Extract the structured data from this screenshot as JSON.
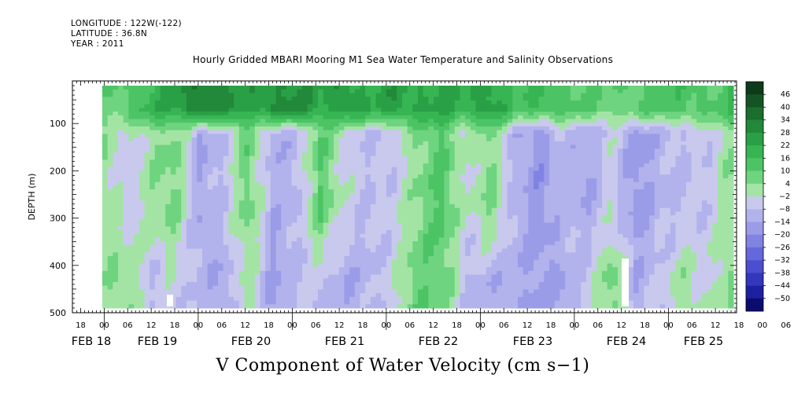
{
  "header": {
    "longitude": "LONGITUDE : 122W(-122)",
    "latitude": "LATITUDE : 36.8N",
    "year": "YEAR : 2011"
  },
  "title": "Hourly Gridded MBARI Mooring M1 Sea Water Temperature and Salinity Observations",
  "bottom_title": "V Component of Water Velocity (cm s−1)",
  "chart_data": {
    "type": "heatmap",
    "title": "Hourly Gridded MBARI Mooring M1 Sea Water Temperature and Salinity Observations",
    "xlabel": "",
    "ylabel": "DEPTH (m)",
    "ylim": [
      500,
      10
    ],
    "y_ticks": [
      100,
      200,
      300,
      400,
      500
    ],
    "x_hour_ticks": [
      "18",
      "00",
      "06",
      "12",
      "18",
      "00",
      "06",
      "12",
      "18",
      "00",
      "06",
      "12",
      "18",
      "00",
      "06",
      "12",
      "18",
      "00",
      "06",
      "12",
      "18",
      "00",
      "06",
      "12",
      "18",
      "00",
      "06",
      "12",
      "18",
      "00",
      "06",
      "12"
    ],
    "x_date_labels": [
      "FEB 18",
      "FEB 19",
      "FEB 20",
      "FEB 21",
      "FEB 22",
      "FEB 23",
      "FEB 24",
      "FEB 25"
    ],
    "colorbar_levels": [
      "46",
      "40",
      "34",
      "28",
      "22",
      "16",
      "10",
      "4",
      "-2",
      "-8",
      "-14",
      "-20",
      "-26",
      "-32",
      "-38",
      "-44",
      "-50"
    ],
    "colorbar_colors": [
      "#0e3a1a",
      "#145424",
      "#1b6e2e",
      "#22883a",
      "#2aa046",
      "#37b553",
      "#4cc465",
      "#6ed47f",
      "#a3e4a5",
      "#c9c9ee",
      "#b2b2ec",
      "#9b9ce8",
      "#8083e2",
      "#6468da",
      "#4b4fcf",
      "#3337bd",
      "#1e20a2",
      "#0c0c70"
    ],
    "surface_band": {
      "depth_range": [
        20,
        70
      ],
      "value_approx": 30
    },
    "columns": [
      {
        "time": "FEB 18 21:00",
        "top": 6,
        "mid": 4,
        "deep": 2
      },
      {
        "time": "FEB 19 00:00",
        "top": 12,
        "mid": -6,
        "deep": 4
      },
      {
        "time": "FEB 19 06:00",
        "top": 18,
        "mid": 2,
        "deep": -8
      },
      {
        "time": "FEB 19 12:00",
        "top": 24,
        "mid": 6,
        "deep": -4
      },
      {
        "time": "FEB 19 18:00",
        "top": 34,
        "mid": -14,
        "deep": -10
      },
      {
        "time": "FEB 20 00:00",
        "top": 30,
        "mid": -8,
        "deep": -14
      },
      {
        "time": "FEB 20 06:00",
        "top": 24,
        "mid": 8,
        "deep": 2
      },
      {
        "time": "FEB 20 12:00",
        "top": 28,
        "mid": -12,
        "deep": -16
      },
      {
        "time": "FEB 20 18:00",
        "top": 30,
        "mid": -10,
        "deep": -8
      },
      {
        "time": "FEB 21 00:00",
        "top": 22,
        "mid": 10,
        "deep": -6
      },
      {
        "time": "FEB 21 06:00",
        "top": 28,
        "mid": -4,
        "deep": -14
      },
      {
        "time": "FEB 21 12:00",
        "top": 20,
        "mid": -8,
        "deep": -10
      },
      {
        "time": "FEB 21 18:00",
        "top": 26,
        "mid": -6,
        "deep": -4
      },
      {
        "time": "FEB 22 00:00",
        "top": 22,
        "mid": 4,
        "deep": 10
      },
      {
        "time": "FEB 22 06:00",
        "top": 24,
        "mid": 12,
        "deep": 8
      },
      {
        "time": "FEB 22 12:00",
        "top": 20,
        "mid": -4,
        "deep": -8
      },
      {
        "time": "FEB 22 18:00",
        "top": 26,
        "mid": 6,
        "deep": -12
      },
      {
        "time": "FEB 23 00:00",
        "top": 14,
        "mid": -10,
        "deep": -12
      },
      {
        "time": "FEB 23 06:00",
        "top": 16,
        "mid": -18,
        "deep": -16
      },
      {
        "time": "FEB 23 12:00",
        "top": 12,
        "mid": -8,
        "deep": -14
      },
      {
        "time": "FEB 23 18:00",
        "top": 10,
        "mid": -14,
        "deep": -6
      },
      {
        "time": "FEB 24 00:00",
        "top": 8,
        "mid": -4,
        "deep": 8
      },
      {
        "time": "FEB 24 06:00",
        "top": 10,
        "mid": -18,
        "deep": -12
      },
      {
        "time": "FEB 24 12:00",
        "top": 12,
        "mid": -10,
        "deep": -6
      },
      {
        "time": "FEB 24 18:00",
        "top": 14,
        "mid": -8,
        "deep": 2
      },
      {
        "time": "FEB 25 00:00",
        "top": 10,
        "mid": -6,
        "deep": -4
      },
      {
        "time": "FEB 25 06:00",
        "top": 16,
        "mid": 4,
        "deep": 6
      }
    ]
  }
}
